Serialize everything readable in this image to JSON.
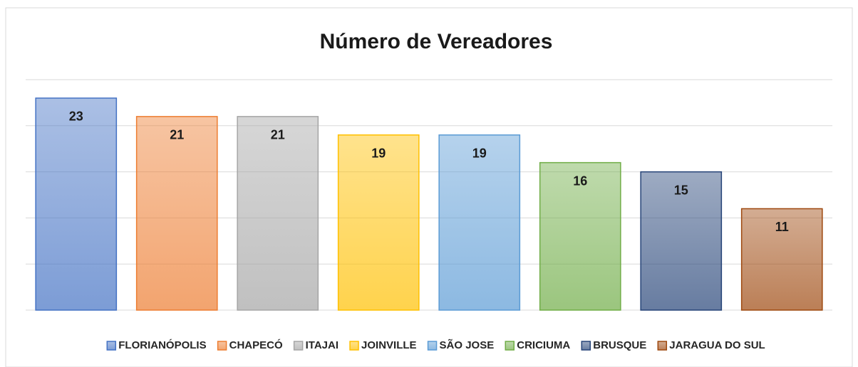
{
  "chart_data": {
    "type": "bar",
    "title": "Número de Vereadores",
    "series": [
      {
        "name": "FLORIANÓPOLIS",
        "color": "#4472c4",
        "values": [
          23
        ]
      },
      {
        "name": "CHAPECÓ",
        "color": "#ed7d31",
        "values": [
          21
        ]
      },
      {
        "name": "ITAJAI",
        "color": "#a5a5a5",
        "values": [
          21
        ]
      },
      {
        "name": "JOINVILLE",
        "color": "#ffc000",
        "values": [
          19
        ]
      },
      {
        "name": "SÃO JOSE",
        "color": "#5b9bd5",
        "values": [
          19
        ]
      },
      {
        "name": "CRICIUMA",
        "color": "#70ad47",
        "values": [
          16
        ]
      },
      {
        "name": "BRUSQUE",
        "color": "#264478",
        "values": [
          15
        ]
      },
      {
        "name": "JARAGUA DO SUL",
        "color": "#9e480e",
        "values": [
          11
        ]
      }
    ],
    "ylim": [
      0,
      25
    ],
    "yticks": [
      0,
      5,
      10,
      15,
      20,
      25
    ],
    "grid": true,
    "legend": "bottom"
  }
}
